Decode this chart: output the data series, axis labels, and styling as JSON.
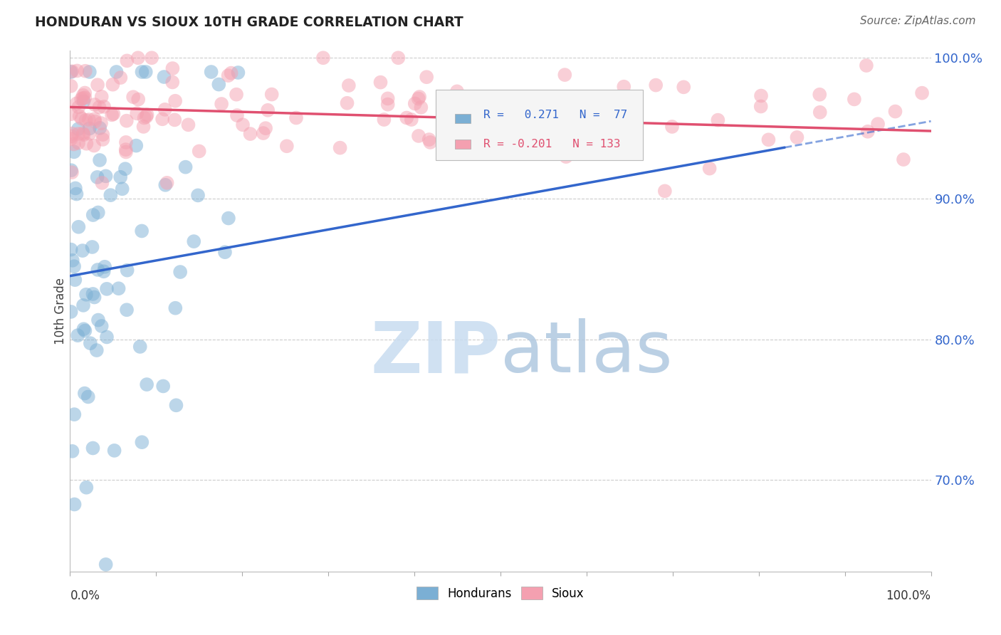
{
  "title": "HONDURAN VS SIOUX 10TH GRADE CORRELATION CHART",
  "source_text": "Source: ZipAtlas.com",
  "ylabel": "10th Grade",
  "ytick_labels": [
    "70.0%",
    "80.0%",
    "90.0%",
    "100.0%"
  ],
  "ytick_values": [
    0.7,
    0.8,
    0.9,
    1.0
  ],
  "xlim": [
    0.0,
    1.0
  ],
  "ylim": [
    0.635,
    1.005
  ],
  "blue_R": 0.271,
  "blue_N": 77,
  "pink_R": -0.201,
  "pink_N": 133,
  "blue_color": "#7BAFD4",
  "pink_color": "#F4A0B0",
  "blue_line_color": "#3366CC",
  "pink_line_color": "#E05070",
  "grid_color": "#CCCCCC",
  "blue_line_y0": 0.845,
  "blue_line_y1": 0.955,
  "pink_line_y0": 0.965,
  "pink_line_y1": 0.948
}
